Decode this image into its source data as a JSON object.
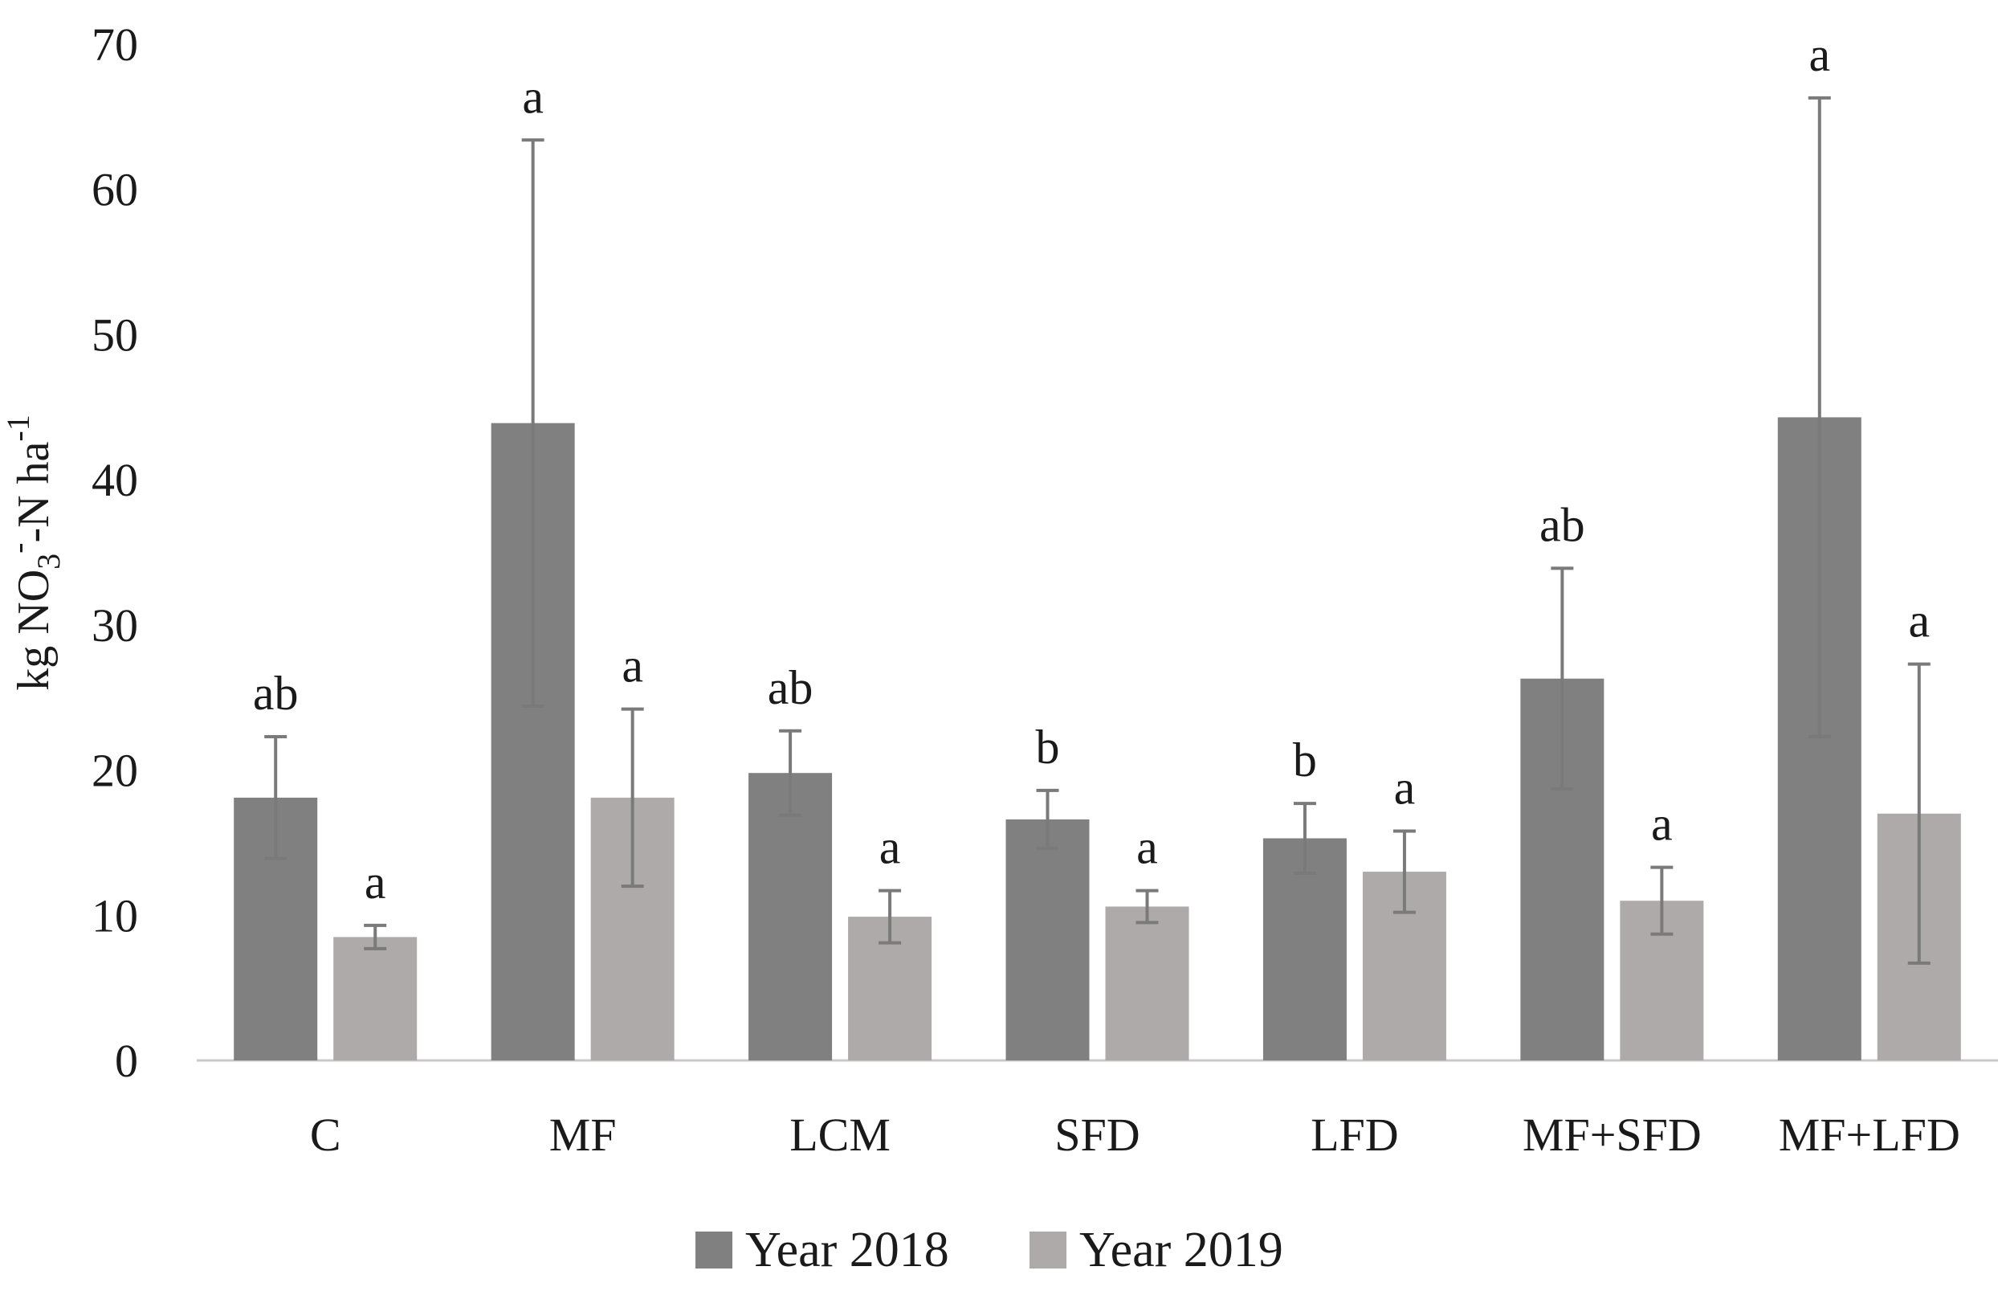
{
  "chart_data": {
    "type": "bar",
    "title": "",
    "xlabel": "",
    "ylabel": {
      "prefix": "kg NO",
      "sub": "3",
      "sup": "-",
      "mid": "-N ha",
      "sup2": "-1"
    },
    "ylim": [
      0,
      70
    ],
    "yticks": [
      0,
      10,
      20,
      30,
      40,
      50,
      60,
      70
    ],
    "grid": false,
    "legend_position": "bottom",
    "categories": [
      "C",
      "MF",
      "LCM",
      "SFD",
      "LFD",
      "MF+SFD",
      "MF+LFD"
    ],
    "series": [
      {
        "name": "Year 2018",
        "color": "#808080",
        "values": [
          18.1,
          43.9,
          19.8,
          16.6,
          15.3,
          26.3,
          44.3
        ],
        "error": [
          4.2,
          19.5,
          2.9,
          2.0,
          2.4,
          7.6,
          22.0
        ],
        "letters": [
          "ab",
          "a",
          "ab",
          "b",
          "b",
          "ab",
          "a"
        ]
      },
      {
        "name": "Year 2019",
        "color": "#aeaaaa",
        "values": [
          8.5,
          18.1,
          9.9,
          10.6,
          13.0,
          11.0,
          17.0
        ],
        "error": [
          0.8,
          6.1,
          1.8,
          1.1,
          2.8,
          2.3,
          10.3
        ],
        "letters": [
          "a",
          "a",
          "a",
          "a",
          "a",
          "a",
          "a"
        ]
      }
    ]
  }
}
